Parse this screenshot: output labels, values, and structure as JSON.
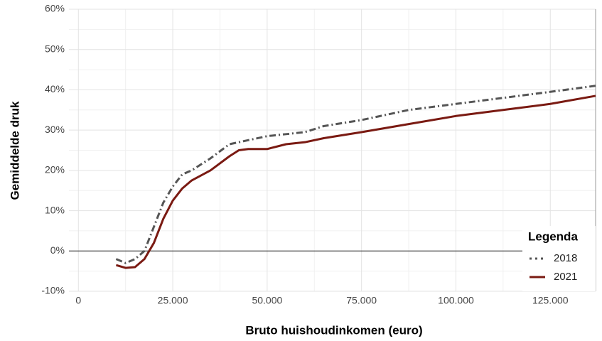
{
  "chart_data": {
    "type": "line",
    "xlabel": "Bruto huishoudinkomen (euro)",
    "ylabel": "Gemiddelde druk",
    "legend_title": "Legenda",
    "legend": "bottom-right",
    "grid": true,
    "xlim": [
      -2500,
      137000
    ],
    "ylim": [
      -10,
      60
    ],
    "xticks": [
      {
        "value": 0,
        "label": "0"
      },
      {
        "value": 25000,
        "label": "25.000"
      },
      {
        "value": 50000,
        "label": "50.000"
      },
      {
        "value": 75000,
        "label": "75.000"
      },
      {
        "value": 100000,
        "label": "100.000"
      },
      {
        "value": 125000,
        "label": "125.000"
      }
    ],
    "yticks": [
      {
        "value": -10,
        "label": "-10%"
      },
      {
        "value": 0,
        "label": "0%"
      },
      {
        "value": 10,
        "label": "10%"
      },
      {
        "value": 20,
        "label": "20%"
      },
      {
        "value": 30,
        "label": "30%"
      },
      {
        "value": 40,
        "label": "40%"
      },
      {
        "value": 50,
        "label": "50%"
      },
      {
        "value": 60,
        "label": "60%"
      }
    ],
    "series": [
      {
        "name": "2018",
        "color": "#555555",
        "dash": "dashdot",
        "x": [
          10000,
          12500,
          15000,
          17500,
          20000,
          22500,
          25000,
          27500,
          30000,
          35000,
          40000,
          45000,
          50000,
          55000,
          60000,
          65000,
          75000,
          87500,
          100000,
          112500,
          125000,
          137000
        ],
        "values": [
          -2,
          -3,
          -2,
          0,
          6,
          12,
          16,
          19,
          20,
          23,
          26.5,
          27.5,
          28.5,
          29,
          29.5,
          31,
          32.5,
          35,
          36.5,
          38,
          39.5,
          41
        ]
      },
      {
        "name": "2021",
        "color": "#7a1a12",
        "dash": "solid",
        "x": [
          10000,
          12500,
          15000,
          17500,
          20000,
          22500,
          25000,
          27500,
          30000,
          35000,
          40000,
          42500,
          45000,
          50000,
          55000,
          60000,
          65000,
          75000,
          87500,
          100000,
          112500,
          125000,
          137000
        ],
        "values": [
          -3.5,
          -4.2,
          -4,
          -2,
          2,
          8,
          12.5,
          15.5,
          17.5,
          20,
          23.5,
          25,
          25.3,
          25.3,
          26.5,
          27,
          28,
          29.5,
          31.5,
          33.5,
          35,
          36.5,
          38.5
        ]
      }
    ]
  }
}
